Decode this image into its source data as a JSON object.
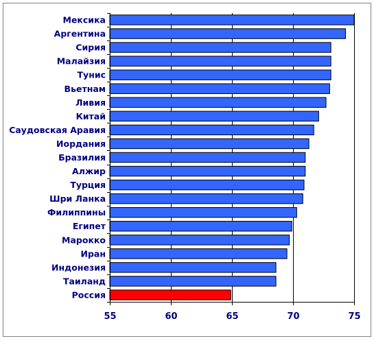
{
  "chart_data": {
    "type": "bar",
    "orientation": "horizontal",
    "title": "",
    "xlabel": "",
    "ylabel": "",
    "xlim": [
      55,
      75
    ],
    "x_ticks": [
      "55",
      "60",
      "65",
      "70",
      "75"
    ],
    "grid": {
      "vertical_major": true,
      "horizontal": false
    },
    "categories": [
      "Мексика",
      "Аргентина",
      "Сирия",
      "Малайзия",
      "Тунис",
      "Вьетнам",
      "Ливия",
      "Китай",
      "Саудовская Аравия",
      "Иордания",
      "Бразилия",
      "Алжир",
      "Турция",
      "Шри Ланка",
      "Филиппины",
      "Египет",
      "Марокко",
      "Иран",
      "Индонезия",
      "Таиланд",
      "Россия"
    ],
    "values": [
      75.0,
      74.3,
      73.1,
      73.1,
      73.1,
      73.0,
      72.7,
      72.1,
      71.7,
      71.3,
      71.0,
      71.0,
      70.9,
      70.8,
      70.3,
      69.9,
      69.7,
      69.5,
      68.6,
      68.6,
      64.9
    ],
    "highlight": "Россия",
    "colors": {
      "bar": "#3366FF",
      "highlight_bar": "#FF0000",
      "label_text": "#000080",
      "bar_outline": "#000000",
      "frame": "#808080"
    }
  }
}
